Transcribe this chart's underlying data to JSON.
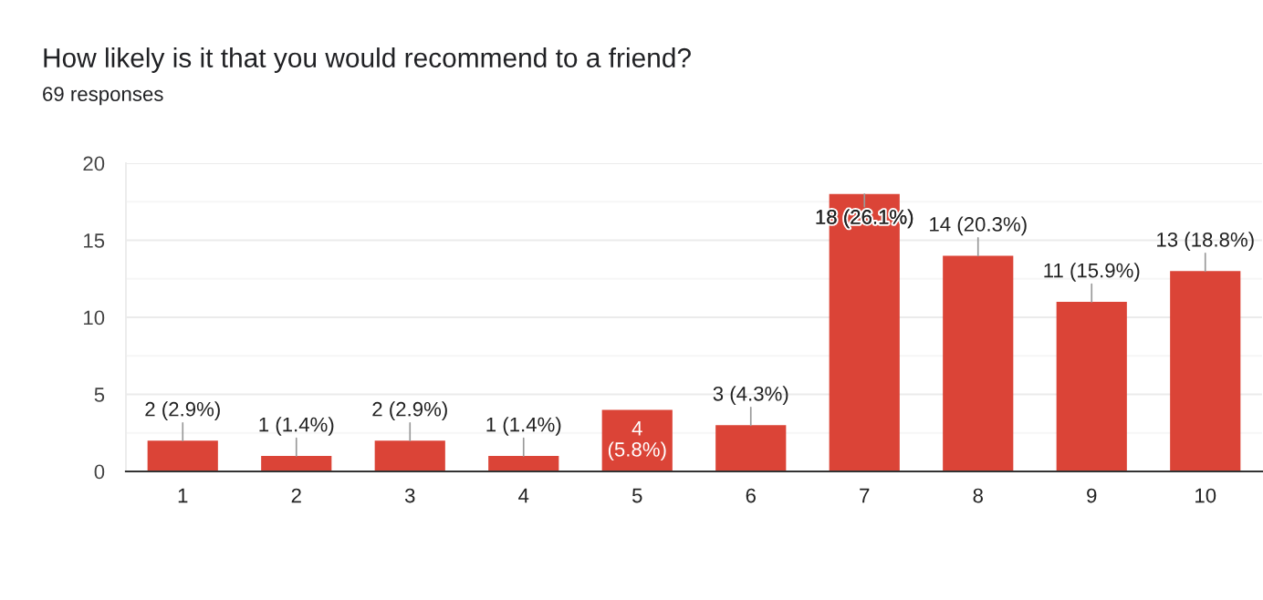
{
  "chart_data": {
    "type": "bar",
    "title": "How likely is it that you would recommend to a friend?",
    "subtitle": "69 responses",
    "categories": [
      "1",
      "2",
      "3",
      "4",
      "5",
      "6",
      "7",
      "8",
      "9",
      "10"
    ],
    "values": [
      2,
      1,
      2,
      1,
      4,
      3,
      18,
      14,
      11,
      13
    ],
    "color": "#db4437",
    "ylim": [
      0,
      20
    ],
    "yticks": [
      0,
      {
        "value": 2.5,
        "label": null
      },
      5,
      {
        "value": 7.5,
        "label": null
      },
      10,
      {
        "value": 12.5,
        "label": null
      },
      15,
      {
        "value": 17.5,
        "label": null
      },
      20
    ],
    "grid": "y",
    "value_labels": [
      "2 (2.9%)",
      "1 (1.4%)",
      "2 (2.9%)",
      "1 (1.4%)",
      "4\n(5.8%)",
      "3 (4.3%)",
      "18 (26.1%)",
      "14 (20.3%)",
      "11 (15.9%)",
      "13 (18.8%)"
    ]
  }
}
